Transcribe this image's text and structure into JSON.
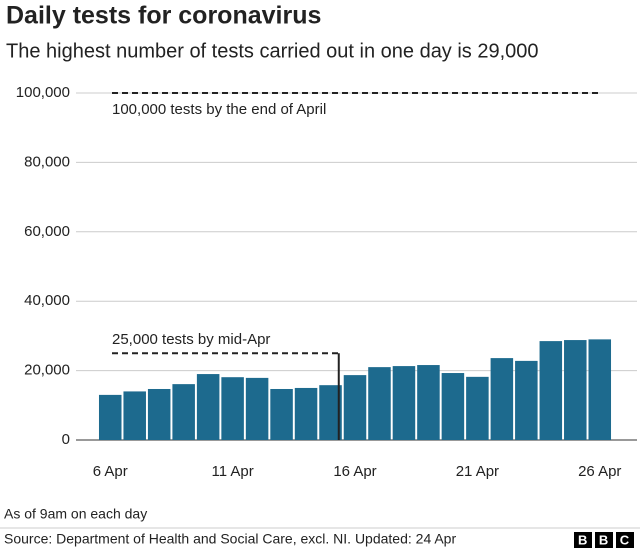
{
  "chart_data": {
    "type": "bar",
    "title": "Daily tests for coronavirus",
    "subtitle": "The highest number of tests carried out in one day is 29,000",
    "categories": [
      "6 Apr",
      null,
      null,
      null,
      null,
      "11 Apr",
      null,
      null,
      null,
      null,
      "16 Apr",
      null,
      null,
      null,
      null,
      "21 Apr",
      null,
      null,
      null,
      null,
      "26 Apr"
    ],
    "values": [
      13000,
      14000,
      14700,
      16100,
      19000,
      18100,
      17900,
      14700,
      15000,
      15800,
      18700,
      21000,
      21300,
      21600,
      19300,
      18200,
      23600,
      22800,
      28500,
      28800,
      29000
    ],
    "color": "#1d6a8e",
    "ylim": [
      0,
      100000
    ],
    "yticks": [
      0,
      {
        "value": 20000,
        "label": "20,000"
      },
      {
        "value": 40000,
        "label": "40,000"
      },
      {
        "value": 60000,
        "label": "60,000"
      },
      {
        "value": 80000,
        "label": "80,000"
      },
      {
        "value": 100000,
        "label": "100,000"
      }
    ],
    "grid": true,
    "targets": [
      {
        "value": 100000,
        "label": "100,000 tests by the end of April"
      },
      {
        "value": 25000,
        "label": "25,000 tests by mid-Apr"
      }
    ],
    "note": "As of 9am on each day",
    "source": "Source: Department of Health and Social Care, excl. NI. Updated: 24 Apr",
    "logo": "BBC"
  }
}
